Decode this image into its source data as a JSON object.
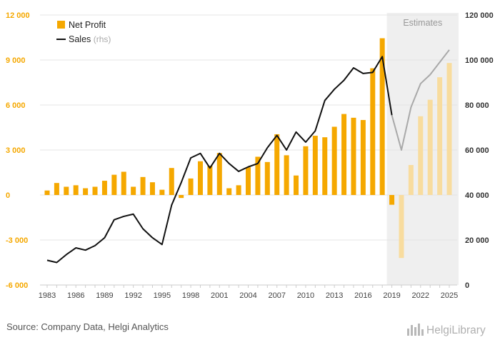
{
  "chart_data": {
    "type": "bar",
    "x": [
      1983,
      1984,
      1985,
      1986,
      1987,
      1988,
      1989,
      1990,
      1991,
      1992,
      1993,
      1994,
      1995,
      1996,
      1997,
      1998,
      1999,
      2000,
      2001,
      2002,
      2003,
      2004,
      2005,
      2006,
      2007,
      2008,
      2009,
      2010,
      2011,
      2012,
      2013,
      2014,
      2015,
      2016,
      2017,
      2018,
      2019,
      2020,
      2021,
      2022,
      2023,
      2024,
      2025
    ],
    "x_tick_labels": [
      "1983",
      "1986",
      "1989",
      "1992",
      "1995",
      "1998",
      "2001",
      "2004",
      "2007",
      "2010",
      "2013",
      "2016",
      "2019",
      "2022",
      "2025"
    ],
    "estimates_from": 2019,
    "estimates_label": "Estimates",
    "series": [
      {
        "name": "Net Profit",
        "axis": "left",
        "kind": "bar",
        "values": [
          300,
          800,
          550,
          650,
          450,
          550,
          950,
          1350,
          1550,
          550,
          1200,
          850,
          350,
          1800,
          -200,
          1100,
          2250,
          1950,
          2800,
          450,
          650,
          1850,
          2550,
          2200,
          4050,
          2650,
          1300,
          3250,
          3950,
          3850,
          4550,
          5400,
          5150,
          5000,
          8450,
          10450,
          -650,
          -4200,
          2000,
          5250,
          6350,
          7850,
          8800
        ]
      },
      {
        "name": "Sales",
        "name_suffix": "(rhs)",
        "axis": "right",
        "kind": "line",
        "values": [
          11000,
          10000,
          13500,
          16500,
          15500,
          17500,
          21000,
          29000,
          30500,
          31500,
          25000,
          21000,
          18000,
          35500,
          45500,
          56500,
          58500,
          52000,
          58500,
          54000,
          50500,
          52500,
          54000,
          61000,
          66500,
          60000,
          68000,
          63500,
          68500,
          82000,
          87000,
          91000,
          96500,
          94000,
          94500,
          101500,
          75500,
          60000,
          79000,
          89500,
          93500,
          99000,
          104500
        ]
      }
    ],
    "y_left": {
      "range": [
        -6000,
        12000
      ],
      "ticks": [
        -6000,
        -3000,
        0,
        3000,
        6000,
        9000,
        12000
      ],
      "tick_labels": [
        "-6 000",
        "-3 000",
        "0",
        "3 000",
        "6 000",
        "9 000",
        "12 000"
      ]
    },
    "y_right": {
      "range": [
        0,
        120000
      ],
      "ticks": [
        0,
        20000,
        40000,
        60000,
        80000,
        100000,
        120000
      ],
      "tick_labels": [
        "0",
        "20 000",
        "40 000",
        "60 000",
        "80 000",
        "100 000",
        "120 000"
      ]
    },
    "grid": true,
    "legend": "top-left",
    "colors": {
      "bar": "#f5a800",
      "bar_estimate": "#f8dc9e",
      "line": "#111111",
      "line_estimate": "#a9a9a9",
      "estimate_bg": "#efefef"
    }
  },
  "footer": {
    "source": "Source: Company Data, Helgi Analytics",
    "logo_text": "HelgiLibrary"
  }
}
